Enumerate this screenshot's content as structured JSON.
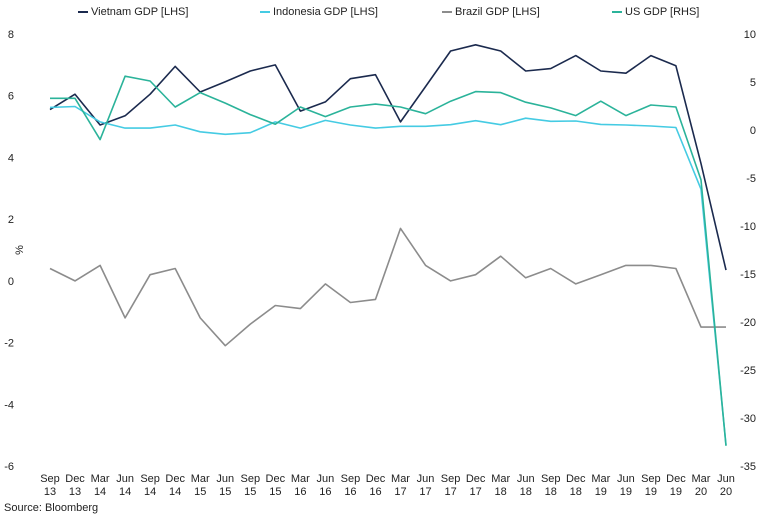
{
  "chart_data": {
    "type": "line",
    "categories": [
      [
        "Sep",
        "13"
      ],
      [
        "Dec",
        "13"
      ],
      [
        "Mar",
        "14"
      ],
      [
        "Jun",
        "14"
      ],
      [
        "Sep",
        "14"
      ],
      [
        "Dec",
        "14"
      ],
      [
        "Mar",
        "15"
      ],
      [
        "Jun",
        "15"
      ],
      [
        "Sep",
        "15"
      ],
      [
        "Dec",
        "15"
      ],
      [
        "Mar",
        "16"
      ],
      [
        "Jun",
        "16"
      ],
      [
        "Sep",
        "16"
      ],
      [
        "Dec",
        "16"
      ],
      [
        "Mar",
        "17"
      ],
      [
        "Jun",
        "17"
      ],
      [
        "Sep",
        "17"
      ],
      [
        "Dec",
        "17"
      ],
      [
        "Mar",
        "18"
      ],
      [
        "Jun",
        "18"
      ],
      [
        "Sep",
        "18"
      ],
      [
        "Dec",
        "18"
      ],
      [
        "Mar",
        "19"
      ],
      [
        "Jun",
        "19"
      ],
      [
        "Sep",
        "19"
      ],
      [
        "Dec",
        "19"
      ],
      [
        "Mar",
        "20"
      ],
      [
        "Jun",
        "20"
      ]
    ],
    "ylabel": "%",
    "left_axis": {
      "min": -6,
      "max": 8,
      "ticks": [
        -6,
        -4,
        -2,
        0,
        2,
        4,
        6,
        8
      ]
    },
    "right_axis": {
      "min": -35,
      "max": 10,
      "ticks": [
        -35,
        -30,
        -25,
        -20,
        -15,
        -10,
        -5,
        0,
        5,
        10
      ]
    },
    "series": [
      {
        "name": "Vietnam GDP [LHS]",
        "axis": "left",
        "color": "#1b2a4e",
        "values": [
          5.55,
          6.05,
          5.05,
          5.35,
          6.05,
          6.95,
          6.12,
          6.45,
          6.8,
          7.0,
          5.5,
          5.8,
          6.55,
          6.68,
          5.15,
          6.3,
          7.45,
          7.65,
          7.45,
          6.8,
          6.88,
          7.3,
          6.8,
          6.73,
          7.3,
          6.97,
          3.8,
          0.35
        ]
      },
      {
        "name": "Indonesia GDP [LHS]",
        "axis": "left",
        "color": "#45cbe3",
        "values": [
          5.62,
          5.65,
          5.15,
          4.95,
          4.95,
          5.05,
          4.83,
          4.75,
          4.8,
          5.15,
          4.95,
          5.2,
          5.05,
          4.95,
          5.01,
          5.01,
          5.06,
          5.19,
          5.06,
          5.27,
          5.17,
          5.18,
          5.07,
          5.05,
          5.02,
          4.97,
          2.97,
          -5.32
        ]
      },
      {
        "name": "Brazil GDP [LHS]",
        "axis": "left",
        "color": "#8c8c8c",
        "values": [
          0.4,
          0.0,
          0.5,
          -1.2,
          0.2,
          0.4,
          -1.2,
          -2.1,
          -1.4,
          -0.8,
          -0.9,
          -0.1,
          -0.7,
          -0.6,
          1.7,
          0.5,
          0.0,
          0.2,
          0.8,
          0.1,
          0.4,
          -0.1,
          0.2,
          0.5,
          0.5,
          0.4,
          -1.5,
          -1.5
        ]
      },
      {
        "name": "US GDP [RHS]",
        "axis": "right",
        "color": "#2bb39a",
        "values": [
          3.3,
          3.3,
          -1.0,
          5.6,
          5.1,
          2.4,
          3.9,
          2.8,
          1.6,
          0.6,
          2.4,
          1.4,
          2.4,
          2.7,
          2.4,
          1.7,
          3.0,
          4.0,
          3.9,
          2.9,
          2.3,
          1.5,
          3.0,
          1.5,
          2.6,
          2.4,
          -5.2,
          -32.9
        ]
      }
    ]
  },
  "source": "Source: Bloomberg"
}
